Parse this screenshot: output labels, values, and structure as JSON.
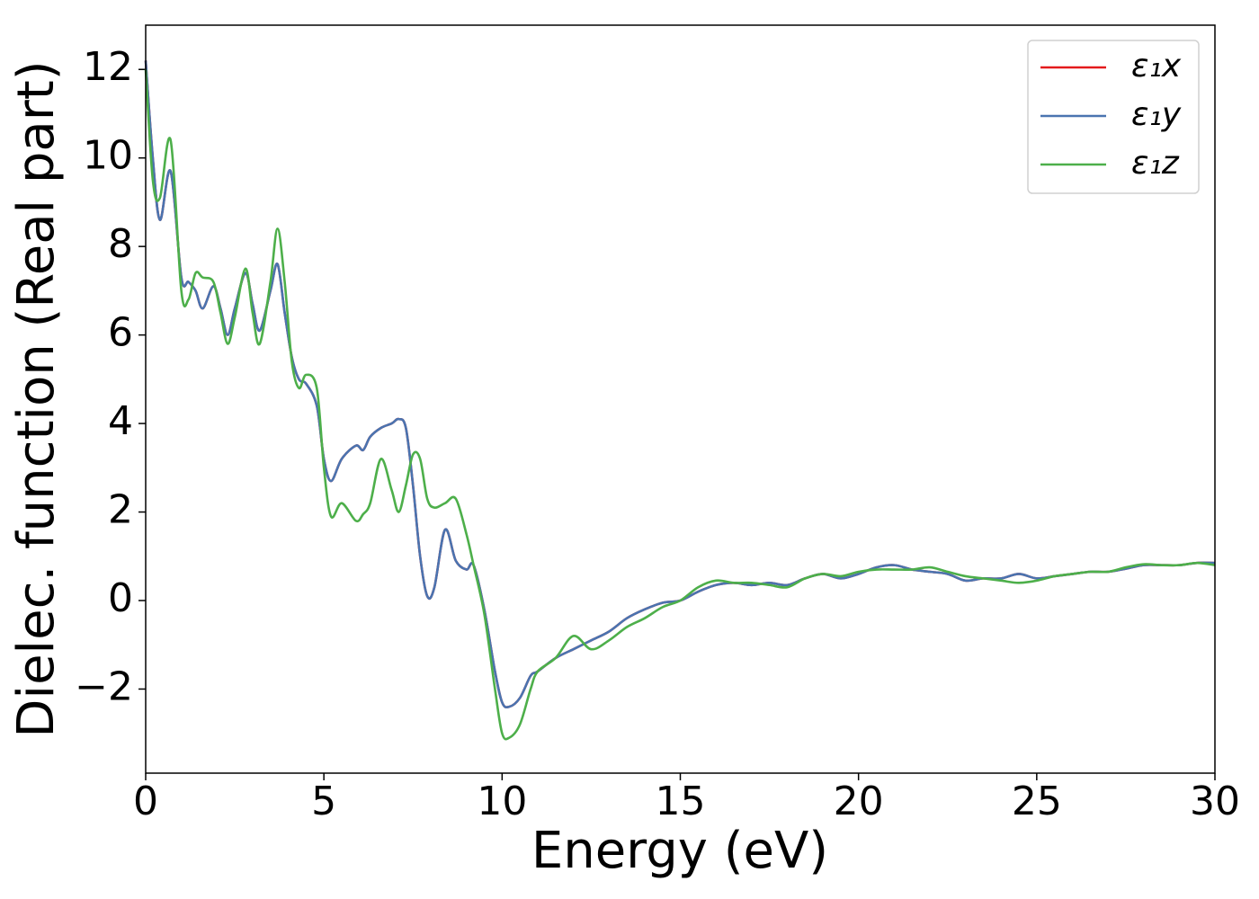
{
  "chart_data": {
    "type": "line",
    "x_label": "Energy (eV)",
    "y_label": "Dielec. function (Real part)",
    "x": [
      0,
      0.2,
      0.4,
      0.7,
      1.0,
      1.2,
      1.4,
      1.6,
      1.9,
      2.1,
      2.3,
      2.5,
      2.8,
      3.0,
      3.2,
      3.5,
      3.7,
      3.9,
      4.1,
      4.3,
      4.5,
      4.8,
      5.0,
      5.2,
      5.5,
      5.9,
      6.1,
      6.3,
      6.6,
      6.9,
      7.1,
      7.3,
      7.5,
      7.7,
      7.9,
      8.1,
      8.4,
      8.7,
      9.0,
      9.2,
      9.5,
      9.8,
      10.0,
      10.2,
      10.5,
      10.8,
      11.0,
      11.5,
      12.0,
      12.5,
      13.0,
      13.5,
      14.0,
      14.5,
      15.0,
      15.5,
      16.0,
      16.5,
      17.0,
      17.5,
      18.0,
      18.5,
      19.0,
      19.5,
      20.0,
      20.5,
      21.0,
      21.5,
      22.0,
      22.5,
      23.0,
      23.5,
      24.0,
      24.5,
      25.0,
      25.5,
      26.0,
      26.5,
      27.0,
      27.5,
      28.0,
      28.5,
      29.0,
      29.5,
      30.0
    ],
    "series": [
      {
        "name": "ε₁x",
        "color": "#e41a1c",
        "values": [
          12.2,
          10,
          8.6,
          9.7,
          7.3,
          7.2,
          7.0,
          6.6,
          7.1,
          6.6,
          6.0,
          6.6,
          7.4,
          6.7,
          6.1,
          7.0,
          7.6,
          6.5,
          5.5,
          5.0,
          4.9,
          4.4,
          3.2,
          2.7,
          3.2,
          3.5,
          3.4,
          3.7,
          3.9,
          4.0,
          4.1,
          3.9,
          2.6,
          1.0,
          0.1,
          0.3,
          1.6,
          0.9,
          0.7,
          0.8,
          -0.2,
          -1.6,
          -2.3,
          -2.4,
          -2.2,
          -1.7,
          -1.6,
          -1.3,
          -1.1,
          -0.9,
          -0.7,
          -0.4,
          -0.2,
          -0.05,
          0.0,
          0.2,
          0.35,
          0.4,
          0.35,
          0.4,
          0.35,
          0.5,
          0.6,
          0.5,
          0.6,
          0.75,
          0.8,
          0.7,
          0.65,
          0.6,
          0.45,
          0.5,
          0.5,
          0.6,
          0.5,
          0.55,
          0.6,
          0.65,
          0.65,
          0.72,
          0.8,
          0.8,
          0.8,
          0.85,
          0.85
        ]
      },
      {
        "name": "ε₁y",
        "color": "#4a74b0",
        "values": [
          12.2,
          10,
          8.6,
          9.7,
          7.3,
          7.2,
          7.0,
          6.6,
          7.1,
          6.6,
          6.0,
          6.6,
          7.4,
          6.7,
          6.1,
          7.0,
          7.6,
          6.5,
          5.5,
          5.0,
          4.9,
          4.4,
          3.2,
          2.7,
          3.2,
          3.5,
          3.4,
          3.7,
          3.9,
          4.0,
          4.1,
          3.9,
          2.6,
          1.0,
          0.1,
          0.3,
          1.6,
          0.9,
          0.7,
          0.8,
          -0.2,
          -1.6,
          -2.3,
          -2.4,
          -2.2,
          -1.7,
          -1.6,
          -1.3,
          -1.1,
          -0.9,
          -0.7,
          -0.4,
          -0.2,
          -0.05,
          0.0,
          0.2,
          0.35,
          0.4,
          0.35,
          0.4,
          0.35,
          0.5,
          0.6,
          0.5,
          0.6,
          0.75,
          0.8,
          0.7,
          0.65,
          0.6,
          0.45,
          0.5,
          0.5,
          0.6,
          0.5,
          0.55,
          0.6,
          0.65,
          0.65,
          0.72,
          0.8,
          0.8,
          0.8,
          0.85,
          0.85
        ]
      },
      {
        "name": "ε₁z",
        "color": "#4daf4a",
        "values": [
          12.0,
          9.5,
          9.1,
          10.4,
          7.0,
          6.8,
          7.4,
          7.3,
          7.2,
          6.5,
          5.8,
          6.4,
          7.5,
          6.5,
          5.8,
          7.2,
          8.4,
          7.2,
          5.4,
          4.8,
          5.1,
          4.8,
          3.0,
          1.9,
          2.2,
          1.8,
          1.95,
          2.2,
          3.2,
          2.5,
          2.0,
          2.6,
          3.3,
          3.2,
          2.3,
          2.1,
          2.2,
          2.3,
          1.5,
          0.8,
          -0.3,
          -2.0,
          -3.0,
          -3.1,
          -2.8,
          -2.0,
          -1.6,
          -1.3,
          -0.8,
          -1.1,
          -0.9,
          -0.6,
          -0.4,
          -0.15,
          0.0,
          0.3,
          0.45,
          0.4,
          0.4,
          0.35,
          0.3,
          0.5,
          0.6,
          0.55,
          0.65,
          0.7,
          0.7,
          0.7,
          0.75,
          0.65,
          0.55,
          0.5,
          0.45,
          0.4,
          0.45,
          0.55,
          0.6,
          0.65,
          0.65,
          0.75,
          0.82,
          0.8,
          0.8,
          0.85,
          0.8
        ]
      }
    ],
    "xlim": [
      0,
      30
    ],
    "ylim": [
      -3.9,
      13
    ],
    "xticks": [
      0,
      5,
      10,
      15,
      20,
      25,
      30
    ],
    "yticks": [
      {
        "value": -2,
        "label": "−2"
      },
      0,
      2,
      4,
      6,
      8,
      10,
      12
    ],
    "legend": "upper right",
    "grid": false
  }
}
